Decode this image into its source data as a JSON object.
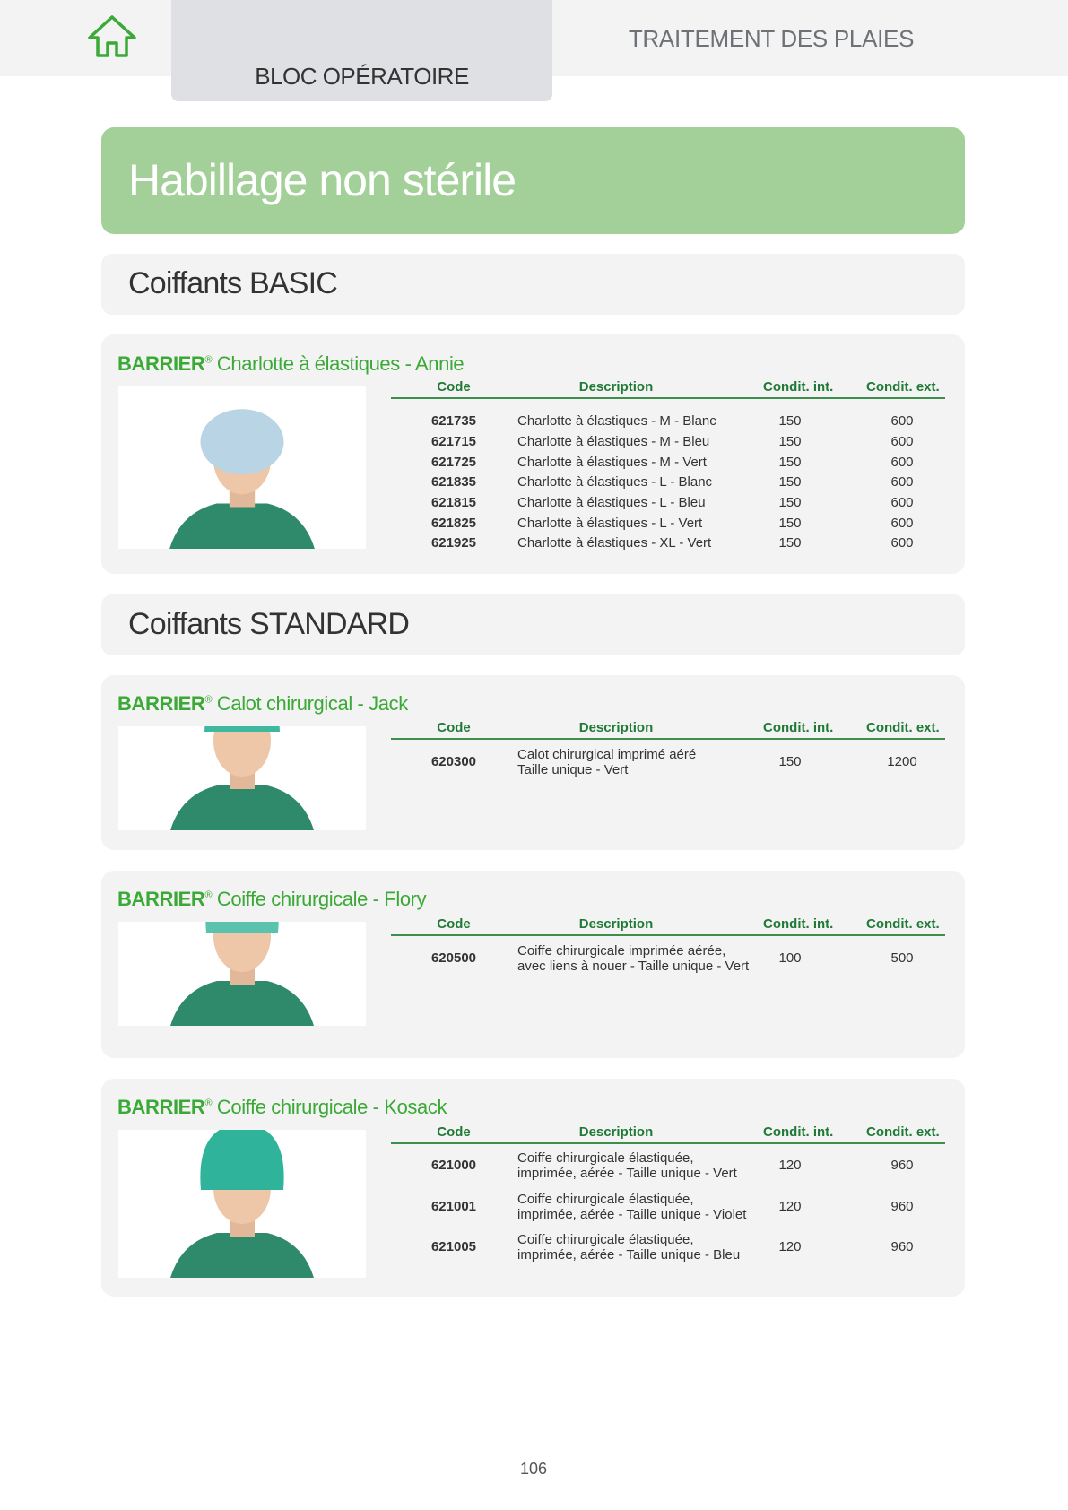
{
  "header": {
    "home_icon": "home-icon",
    "active_tab": "BLOC OPÉRATOIRE",
    "other_tab": "TRAITEMENT DES PLAIES",
    "accent_color": "#3aa935"
  },
  "page_title": "Habillage non stérile",
  "categories": [
    "Coiffants BASIC",
    "Coiffants STANDARD"
  ],
  "table_headers": {
    "code": "Code",
    "description": "Description",
    "cond_int": "Condit. int.",
    "cond_ext": "Condit. ext."
  },
  "products": [
    {
      "brand": "BARRIER",
      "reg": "®",
      "name": "Charlotte à élastiques - Annie",
      "rows": [
        {
          "code": "621735",
          "description": [
            "Charlotte à élastiques - M - Blanc"
          ],
          "cond_int": "150",
          "cond_ext": "600"
        },
        {
          "code": "621715",
          "description": [
            "Charlotte à élastiques - M - Bleu"
          ],
          "cond_int": "150",
          "cond_ext": "600"
        },
        {
          "code": "621725",
          "description": [
            "Charlotte à élastiques - M - Vert"
          ],
          "cond_int": "150",
          "cond_ext": "600"
        },
        {
          "code": "621835",
          "description": [
            "Charlotte à élastiques - L - Blanc"
          ],
          "cond_int": "150",
          "cond_ext": "600"
        },
        {
          "code": "621815",
          "description": [
            "Charlotte à élastiques - L - Bleu"
          ],
          "cond_int": "150",
          "cond_ext": "600"
        },
        {
          "code": "621825",
          "description": [
            "Charlotte à élastiques - L - Vert"
          ],
          "cond_int": "150",
          "cond_ext": "600"
        },
        {
          "code": "621925",
          "description": [
            "Charlotte à élastiques - XL - Vert"
          ],
          "cond_int": "150",
          "cond_ext": "600"
        }
      ]
    },
    {
      "brand": "BARRIER",
      "reg": "®",
      "name": "Calot chirurgical - Jack",
      "rows": [
        {
          "code": "620300",
          "description": [
            "Calot chirurgical imprimé aéré",
            "Taille unique - Vert"
          ],
          "cond_int": "150",
          "cond_ext": "1200"
        }
      ]
    },
    {
      "brand": "BARRIER",
      "reg": "®",
      "name": "Coiffe chirurgicale - Flory",
      "rows": [
        {
          "code": "620500",
          "description": [
            "Coiffe chirurgicale imprimée aérée,",
            "avec liens à nouer - Taille unique - Vert"
          ],
          "cond_int": "100",
          "cond_ext": "500"
        }
      ]
    },
    {
      "brand": "BARRIER",
      "reg": "®",
      "name": "Coiffe chirurgicale - Kosack",
      "rows": [
        {
          "code": "621000",
          "description": [
            "Coiffe chirurgicale élastiquée,",
            "imprimée, aérée - Taille unique - Vert"
          ],
          "cond_int": "120",
          "cond_ext": "960"
        },
        {
          "code": "621001",
          "description": [
            "Coiffe chirurgicale élastiquée,",
            "imprimée, aérée - Taille unique - Violet"
          ],
          "cond_int": "120",
          "cond_ext": "960"
        },
        {
          "code": "621005",
          "description": [
            "Coiffe chirurgicale élastiquée,",
            "imprimée, aérée - Taille unique - Bleu"
          ],
          "cond_int": "120",
          "cond_ext": "960"
        }
      ]
    }
  ],
  "page_number": "106"
}
